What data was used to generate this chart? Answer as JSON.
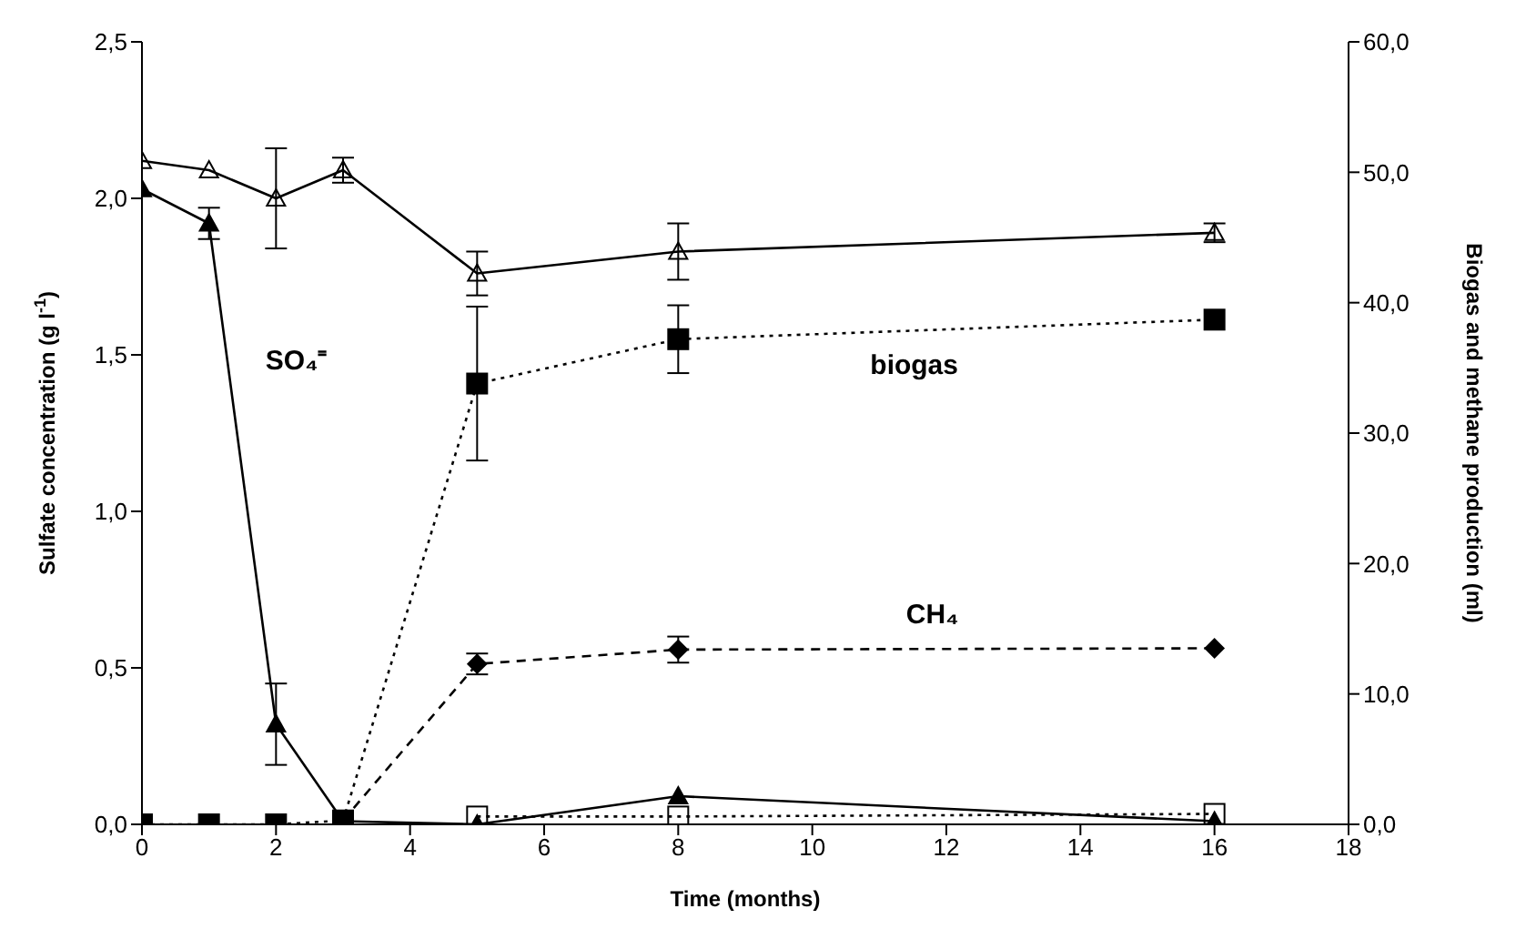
{
  "chart_data": {
    "type": "line",
    "xlabel": "Time (months)",
    "ylabel": "Sulfate concentration (g l$^{-1}$)",
    "y2label": "Biogas and methane production (ml)",
    "x": [
      0,
      1,
      2,
      3,
      5,
      8,
      16
    ],
    "xlim": [
      0,
      18
    ],
    "xticks": [
      0,
      2,
      4,
      6,
      8,
      10,
      12,
      14,
      16,
      18
    ],
    "ylim": [
      0,
      2.5
    ],
    "yticks": [
      {
        "value": 0,
        "label": "0,0"
      },
      {
        "value": 0.5,
        "label": "0,5"
      },
      {
        "value": 1,
        "label": "1,0"
      },
      {
        "value": 1.5,
        "label": "1,5"
      },
      {
        "value": 2,
        "label": "2,0"
      },
      {
        "value": 2.5,
        "label": "2,5"
      }
    ],
    "y2lim": [
      0,
      60
    ],
    "y2ticks": [
      {
        "value": 0,
        "label": "0,0"
      },
      {
        "value": 10,
        "label": "10,0"
      },
      {
        "value": 20,
        "label": "20,0"
      },
      {
        "value": 30,
        "label": "30,0"
      },
      {
        "value": 40,
        "label": "40,0"
      },
      {
        "value": 50,
        "label": "50,0"
      },
      {
        "value": 60,
        "label": "60,0"
      }
    ],
    "series": [
      {
        "color": "#000000",
        "marker": "triangle",
        "line_style": "solid",
        "values": [
          2.12,
          2.09,
          2.0,
          2.09,
          1.76,
          1.83,
          1.89
        ],
        "errors": [
          null,
          null,
          0.16,
          0.04,
          0.07,
          0.09,
          0.03
        ]
      },
      {
        "name": "SO₄⁼",
        "color": "#000000",
        "marker": "triangle",
        "line_style": "solid",
        "values": [
          2.03,
          1.92,
          0.32,
          0.01,
          0.0,
          0.09,
          0.01
        ],
        "errors": [
          null,
          0.05,
          0.13,
          null,
          null,
          null,
          null
        ]
      },
      {
        "color": "#000000",
        "marker": "square",
        "line_style": "dotted",
        "axis": "y2",
        "values": [
          null,
          null,
          null,
          null,
          0.6,
          0.6,
          0.8
        ]
      },
      {
        "name": "biogas",
        "color": "#000000",
        "marker": "square",
        "line_style": "dotted",
        "axis": "y2",
        "values": [
          0,
          0,
          0,
          0.3,
          33.8,
          37.2,
          38.7
        ],
        "errors": [
          null,
          null,
          null,
          null,
          5.9,
          2.6,
          null
        ]
      },
      {
        "name": "CH₄",
        "color": "#000000",
        "marker": "diamond",
        "line_style": "dashed",
        "axis": "y2",
        "values": [
          null,
          null,
          null,
          0.3,
          12.3,
          13.4,
          13.5
        ],
        "errors": [
          null,
          null,
          null,
          null,
          0.8,
          1.0,
          null
        ]
      }
    ]
  }
}
